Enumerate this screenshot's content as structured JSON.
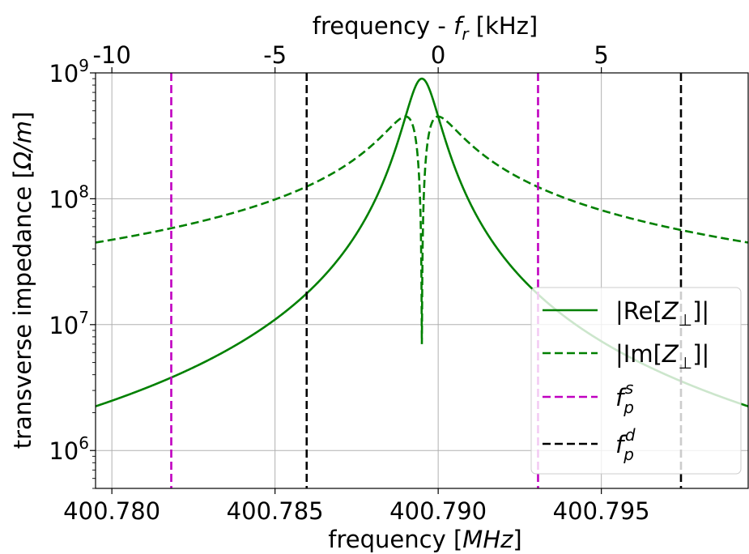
{
  "chart_data": {
    "type": "line",
    "xlabel_prefix": "frequency  [",
    "xlabel_unit": "MHz",
    "xlabel_suffix": "]",
    "ylabel_prefix": "transverse impedance  [",
    "ylabel_unit": "Ω/m",
    "ylabel_suffix": "]",
    "top_xlabel_prefix": "frequency - ",
    "top_xlabel_var": "f",
    "top_xlabel_sub": "r",
    "top_xlabel_suffix": "  [kHz]",
    "xlim": [
      400.7795,
      400.7995
    ],
    "ylim": [
      500000,
      1000000000
    ],
    "yscale": "log",
    "grid": true,
    "x_ticks": [
      400.78,
      400.785,
      400.79,
      400.795
    ],
    "x_tick_labels": [
      "400.780",
      "400.785",
      "400.790",
      "400.795"
    ],
    "top_x_ticks": [
      -10,
      -5,
      0,
      5
    ],
    "top_x_tick_labels": [
      "-10",
      "-5",
      "0",
      "5"
    ],
    "top_x_reference_MHz": 400.79,
    "y_tick_bases": [
      "10",
      "10",
      "10",
      "10"
    ],
    "y_tick_exps": [
      "6",
      "7",
      "8",
      "9"
    ],
    "y_tick_values": [
      1000000,
      10000000,
      100000000,
      1000000000
    ],
    "resonance": {
      "fr_MHz": 400.7895,
      "halfwidth_kHz": 0.5,
      "peak": 900000000,
      "re_im_curve_note": ""
    },
    "series": [
      {
        "name": "|Re[Z⊥]|",
        "color": "#008000",
        "style": "solid",
        "x": [
          400.7795,
          400.7818,
          400.784,
          400.786,
          400.7875,
          400.7885,
          400.789,
          400.7895,
          400.79,
          400.7905,
          400.7915,
          400.793,
          400.795,
          400.7975,
          400.7995
        ],
        "y": [
          1450000,
          2400000,
          5000000,
          11500000,
          35000000,
          150000000,
          450000000,
          900000000,
          450000000,
          150000000,
          35000000,
          11500000,
          5000000,
          2400000,
          1500000
        ]
      },
      {
        "name": "|Im[Z⊥]|",
        "color": "#008000",
        "style": "dashed",
        "x": [
          400.7795,
          400.7818,
          400.784,
          400.786,
          400.7875,
          400.7885,
          400.789,
          400.7893,
          400.7895,
          400.7897,
          400.79,
          400.7905,
          400.7915,
          400.793,
          400.795,
          400.7975,
          400.7995
        ],
        "y": [
          36000000,
          46000000,
          70000000,
          101000000,
          180000000,
          340000000,
          450000000,
          200000000,
          7000000,
          200000000,
          450000000,
          340000000,
          180000000,
          101000000,
          70000000,
          46000000,
          37000000
        ]
      }
    ],
    "vlines": [
      {
        "name": "f_p^s",
        "color": "#c000c0",
        "x": [
          400.78182,
          400.79306
        ]
      },
      {
        "name": "f_p^d",
        "color": "#000000",
        "x": [
          400.78597,
          400.79744
        ]
      }
    ],
    "legend": {
      "placement": "lower-right",
      "entries": [
        {
          "key": "re",
          "pre": "|Re[",
          "var": "Z",
          "sub": "⊥",
          "post": "]|",
          "color": "#008000",
          "dash": false
        },
        {
          "key": "im",
          "pre": "|Im[",
          "var": "Z",
          "sub": "⊥",
          "post": "]|",
          "color": "#008000",
          "dash": true
        },
        {
          "key": "fps",
          "pre": "",
          "var": "f",
          "sub": "p",
          "sup": "s",
          "post": "",
          "color": "#c000c0",
          "dash": true
        },
        {
          "key": "fpd",
          "pre": "",
          "var": "f",
          "sub": "p",
          "sup": "d",
          "post": "",
          "color": "#000000",
          "dash": true
        }
      ]
    }
  }
}
